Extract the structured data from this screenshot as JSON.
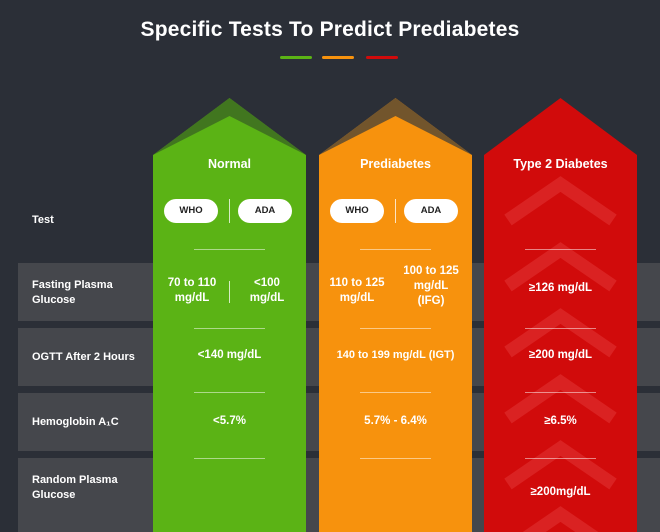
{
  "title": "Specific Tests To Predict Prediabetes",
  "colors": {
    "normal": "#5bb315",
    "prediabetes": "#f7920d",
    "diabetes": "#d10b0b",
    "band": "#45474c",
    "background": "#2b2f37"
  },
  "rows": [
    {
      "label": "Test"
    },
    {
      "label": "Fasting Plasma Glucose"
    },
    {
      "label": "OGTT After 2 Hours"
    },
    {
      "label": "Hemoglobin A₁C"
    },
    {
      "label": "Random Plasma Glucose"
    }
  ],
  "columns": {
    "normal": {
      "header": "Normal",
      "pills": [
        "WHO",
        "ADA"
      ],
      "fasting": [
        "70 to 110 mg/dL",
        "<100 mg/dL"
      ],
      "ogtt": "<140 mg/dL",
      "hba1c": "<5.7%",
      "random": ""
    },
    "prediabetes": {
      "header": "Prediabetes",
      "pills": [
        "WHO",
        "ADA"
      ],
      "fasting": [
        "110 to 125 mg/dL",
        "100 to 125 mg/dL (IFG)"
      ],
      "ogtt": "140 to 199 mg/dL (IGT)",
      "hba1c": "5.7% - 6.4%",
      "random": ""
    },
    "diabetes": {
      "header": "Type 2 Diabetes",
      "fasting": "≥126 mg/dL",
      "ogtt": "≥200 mg/dL",
      "hba1c": "≥6.5%",
      "random": "≥200mg/dL"
    }
  }
}
